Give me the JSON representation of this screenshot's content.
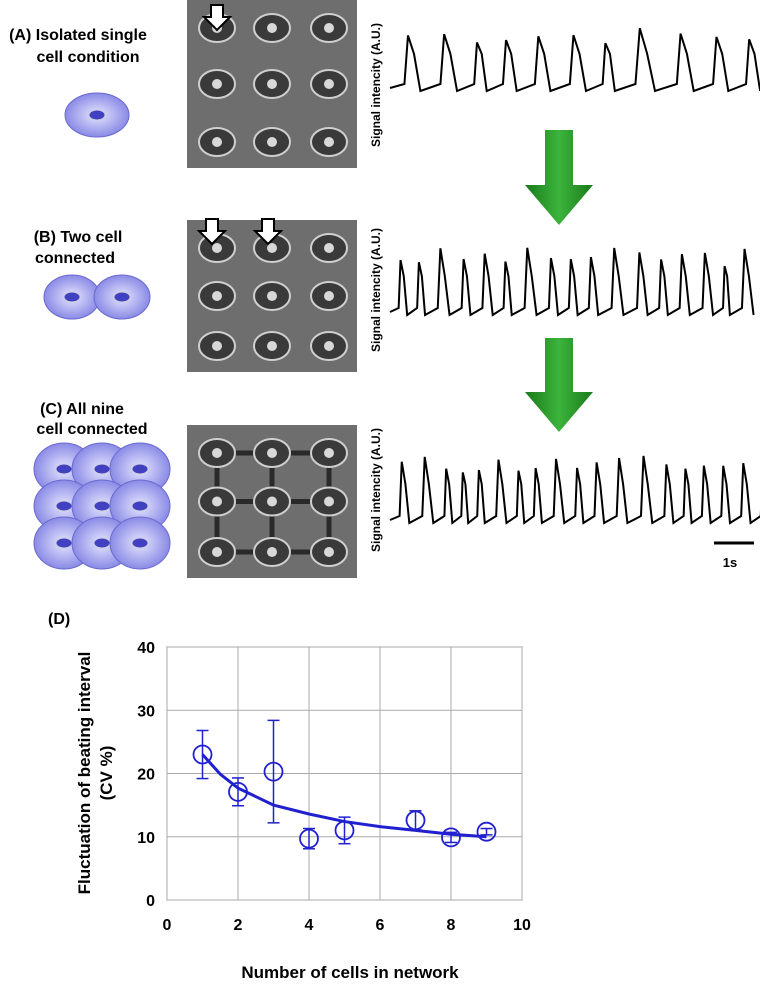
{
  "panels": [
    {
      "title": [
        "(A) Isolated single",
        "cell condition"
      ],
      "signal_label": "Signal intencity (A.U.)"
    },
    {
      "title": [
        "(B) Two cell",
        "connected"
      ],
      "signal_label": "Signal intencity (A.U.)"
    },
    {
      "title": [
        "(C) All nine",
        "cell connected"
      ],
      "signal_label": "Signal intencity (A.U.)"
    }
  ],
  "scale_bar": "1s",
  "chart_data": {
    "type": "scatter",
    "panel_label": "(D)",
    "x_label": "Number of cells in network",
    "y_label": [
      "Fluctuation of beating interval",
      "(CV %)"
    ],
    "x": [
      1,
      2,
      3,
      4,
      5,
      7,
      8,
      9
    ],
    "series": [
      {
        "color": "#2020d0",
        "values": [
          23,
          17.1,
          20.3,
          9.7,
          11,
          12.6,
          9.9,
          10.8
        ],
        "errors": [
          3.8,
          2.2,
          8.1,
          1.6,
          2.1,
          1.5,
          0.8,
          0.5
        ]
      }
    ],
    "fit": {
      "x": [
        1,
        1.5,
        2,
        3,
        4,
        5,
        6,
        7,
        8,
        9
      ],
      "y": [
        23,
        19.9,
        17.7,
        15,
        13.6,
        12.4,
        11.6,
        11,
        10.4,
        10
      ]
    },
    "xlim": [
      0,
      10
    ],
    "ylim": [
      0,
      40
    ],
    "xticks": [
      0,
      2,
      4,
      6,
      8,
      10
    ],
    "yticks": [
      0,
      10,
      20,
      30,
      40
    ],
    "grid": true
  }
}
